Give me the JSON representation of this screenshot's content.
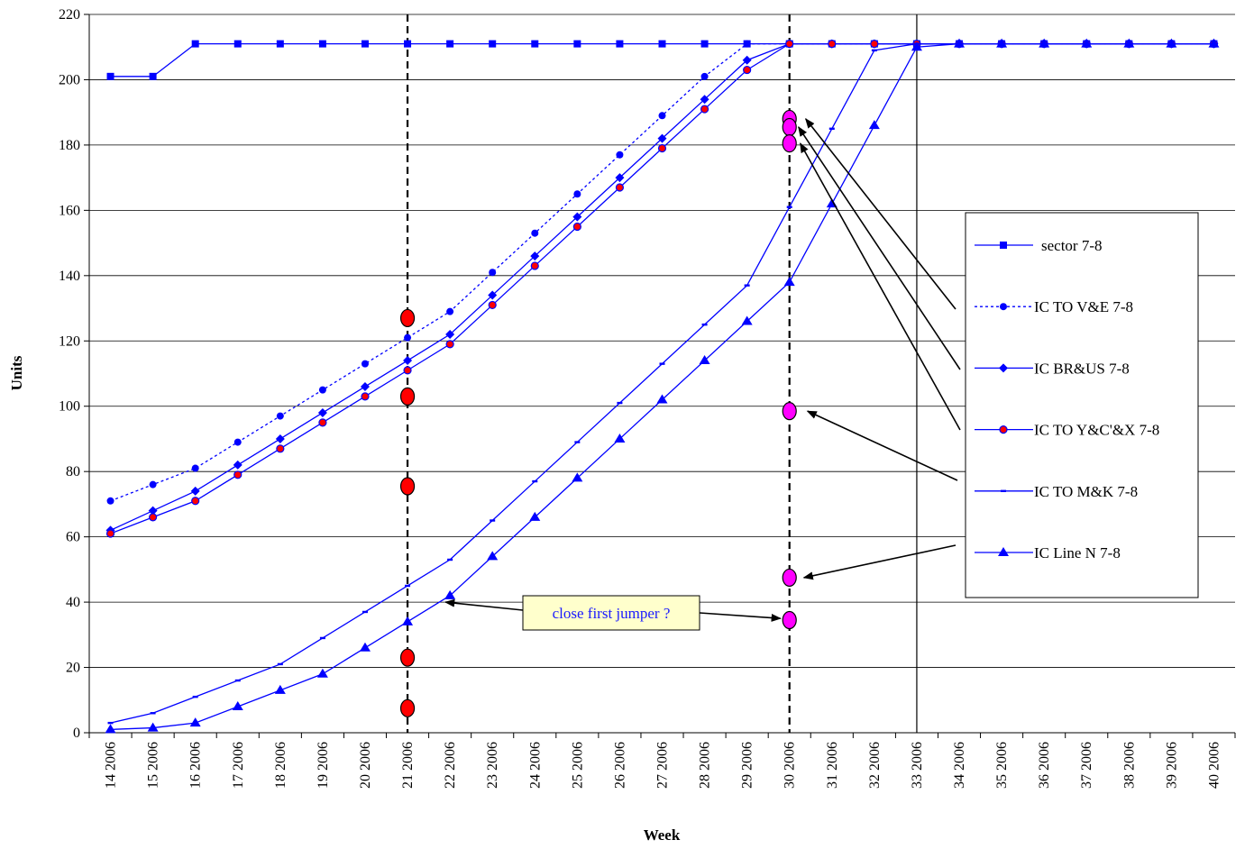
{
  "chart_data": {
    "type": "line",
    "xlabel": "Week",
    "ylabel": "Units",
    "ylim": [
      0,
      220
    ],
    "yticks": [
      0,
      20,
      40,
      60,
      80,
      100,
      120,
      140,
      160,
      180,
      200,
      220
    ],
    "grid": "horizontal",
    "legend_position": "right",
    "categories": [
      "14 2006",
      "15 2006",
      "16 2006",
      "17 2006",
      "18 2006",
      "19 2006",
      "20 2006",
      "21 2006",
      "22 2006",
      "23 2006",
      "24 2006",
      "25 2006",
      "26 2006",
      "27 2006",
      "28 2006",
      "29 2006",
      "30 2006",
      "31 2006",
      "32 2006",
      "33 2006",
      "34 2006",
      "35 2006",
      "36 2006",
      "37 2006",
      "38 2006",
      "39 2006",
      "40 2006"
    ],
    "series": [
      {
        "name": "sector 7-8",
        "marker": "square",
        "dash": "solid",
        "color": "#0000ff",
        "start": 0,
        "values": [
          201,
          201,
          211,
          211,
          211,
          211,
          211,
          211,
          211,
          211,
          211,
          211,
          211,
          211,
          211,
          211,
          211,
          211,
          211,
          211,
          211,
          211,
          211,
          211,
          211,
          211,
          211
        ]
      },
      {
        "name": "IC TO V&E 7-8",
        "marker": "circle",
        "dash": "dotted",
        "color": "#0000ff",
        "start": 0,
        "values": [
          71,
          76,
          81,
          89,
          97,
          105,
          113,
          121,
          129,
          141,
          153,
          165,
          177,
          189,
          201,
          211,
          211,
          211,
          211,
          211,
          211,
          211,
          211,
          211,
          211,
          211,
          211
        ]
      },
      {
        "name": "IC BR&US 7-8",
        "marker": "diamond",
        "dash": "solid",
        "color": "#0000ff",
        "start": 0,
        "values": [
          62,
          68,
          74,
          82,
          90,
          98,
          106,
          114,
          122,
          134,
          146,
          158,
          170,
          182,
          194,
          206,
          211,
          211,
          211,
          211,
          211,
          211,
          211,
          211,
          211,
          211,
          211
        ]
      },
      {
        "name": "IC TO Y&C'&X 7-8",
        "marker": "circle-red",
        "dash": "solid",
        "color": "#0000ff",
        "start": 0,
        "values": [
          61,
          66,
          71,
          79,
          87,
          95,
          103,
          111,
          119,
          131,
          143,
          155,
          167,
          179,
          191,
          203,
          211,
          211,
          211,
          211,
          211,
          211,
          211,
          211,
          211,
          211,
          211
        ]
      },
      {
        "name": "IC TO M&K 7-8",
        "marker": "dash",
        "dash": "solid",
        "color": "#0000ff",
        "start": 0,
        "values": [
          3,
          6,
          11,
          16,
          21,
          29,
          37,
          45,
          53,
          65,
          77,
          89,
          101,
          113,
          125,
          137,
          161,
          185,
          209,
          211,
          211,
          211,
          211,
          211,
          211,
          211,
          211
        ]
      },
      {
        "name": "IC Line N 7-8",
        "marker": "triangle",
        "dash": "solid",
        "color": "#0000ff",
        "start": 0,
        "values": [
          1,
          1.5,
          3,
          8,
          13,
          18,
          26,
          34,
          42,
          54,
          66,
          78,
          90,
          102,
          114,
          126,
          138,
          162,
          186,
          210,
          211,
          211,
          211,
          211,
          211,
          211,
          211
        ]
      }
    ],
    "milestones": [
      {
        "week": "21 2006",
        "style": "dashed",
        "markers": [
          127,
          103,
          75.5,
          23,
          7.5
        ],
        "marker_color": "#ff0000"
      },
      {
        "week": "30 2006",
        "style": "dashed",
        "markers": [
          188,
          185.5,
          180.5,
          98.5,
          47.5,
          34.5
        ],
        "marker_color": "#ff00ff"
      },
      {
        "week": "33 2006",
        "style": "solid",
        "markers": []
      }
    ],
    "annotation": {
      "text": "close first jumper ?",
      "arrows_to": [
        {
          "week": "22 2006",
          "value": 40
        },
        {
          "week": "30 2006",
          "value": 35
        }
      ]
    }
  },
  "colors": {
    "series": "#0000ff",
    "milestone_21": "#ff0000",
    "milestone_30": "#ff00ff",
    "callout_bg": "#ffffcc"
  }
}
